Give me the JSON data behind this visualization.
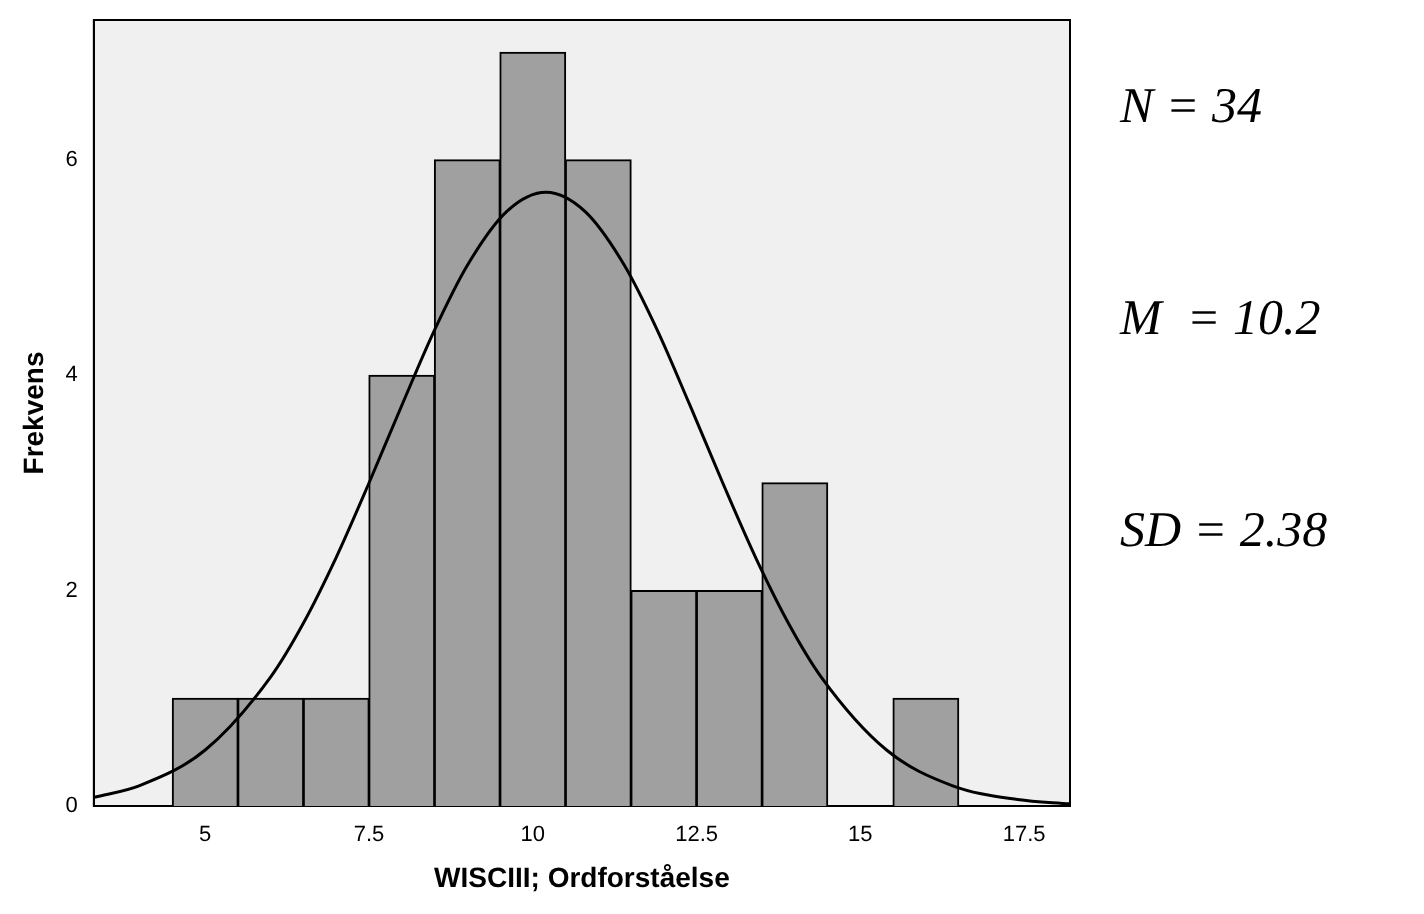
{
  "chart_data": {
    "type": "histogram",
    "xlabel": "WISCIII; Ordforståelse",
    "ylabel": "Frekvens",
    "bins": [
      4.5,
      5.5,
      6.5,
      7.5,
      8.5,
      9.5,
      10.5,
      11.5,
      12.5,
      13.5,
      14.5,
      15.5,
      16.5
    ],
    "values": [
      1,
      1,
      1,
      4,
      6,
      7,
      6,
      2,
      2,
      3,
      0,
      1
    ],
    "color": "#a0a0a0",
    "series": [
      {
        "type": "line",
        "color": "#000000",
        "x": [
          3.3,
          4,
          5,
          6,
          6.5,
          7,
          7.5,
          8,
          8.5,
          9,
          9.6,
          10.2,
          10.8,
          11.4,
          11.9,
          12.4,
          12.9,
          13.4,
          13.9,
          14.4,
          15.4,
          16.4,
          17.4,
          18.2
        ],
        "values": [
          0.08,
          0.19,
          0.52,
          1.2,
          1.7,
          2.31,
          3.0,
          3.72,
          4.42,
          5.02,
          5.52,
          5.7,
          5.52,
          5.02,
          4.42,
          3.72,
          3.0,
          2.31,
          1.7,
          1.2,
          0.52,
          0.19,
          0.06,
          0.02
        ]
      }
    ],
    "xlim": [
      3.3,
      18.2
    ],
    "xticks": [
      5,
      7.5,
      10,
      12.5,
      15,
      17.5
    ],
    "ylim": [
      0,
      7.3
    ],
    "yticks": [
      0,
      2,
      4,
      6
    ],
    "grid": false,
    "legend": false,
    "marker": "none",
    "annotations": [
      "N = 34",
      "M  = 10.2",
      "SD = 2.38"
    ]
  }
}
